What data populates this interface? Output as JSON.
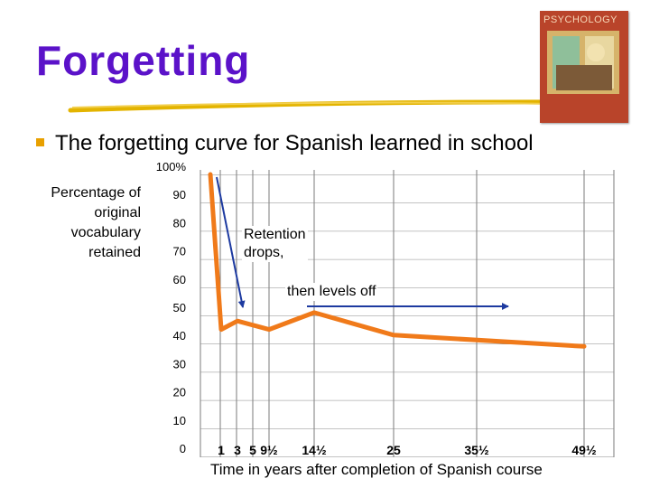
{
  "slide": {
    "title": "Forgetting",
    "bullet": "The forgetting curve for Spanish learned in school",
    "y_axis_label": [
      "Percentage of",
      "original",
      "vocabulary",
      "retained"
    ],
    "x_axis_label": "Time in years after completion of Spanish course",
    "annotation_1": [
      "Retention",
      "drops,"
    ],
    "annotation_2": "then levels off",
    "cover_title": "PSYCHOLOGY"
  },
  "colors": {
    "title": "#5b12c9",
    "bullet": "#e8a000",
    "curve": "#f07a1a",
    "arrow": "#1d3aa0"
  },
  "chart_data": {
    "type": "line",
    "title": "",
    "xlabel": "Time in years after completion of Spanish course",
    "ylabel": "Percentage of original vocabulary retained",
    "y_ticks": [
      {
        "label": "100%",
        "value": 100
      },
      {
        "label": "90",
        "value": 90
      },
      {
        "label": "80",
        "value": 80
      },
      {
        "label": "70",
        "value": 70
      },
      {
        "label": "60",
        "value": 60
      },
      {
        "label": "50",
        "value": 50
      },
      {
        "label": "40",
        "value": 40
      },
      {
        "label": "30",
        "value": 30
      },
      {
        "label": "20",
        "value": 20
      },
      {
        "label": "10",
        "value": 10
      },
      {
        "label": "0",
        "value": 0
      }
    ],
    "x_ticks": [
      {
        "label": "1",
        "value": 1
      },
      {
        "label": "3",
        "value": 3
      },
      {
        "label": "5",
        "value": 5
      },
      {
        "label": "9½",
        "value": 9.5
      },
      {
        "label": "14½",
        "value": 14.5
      },
      {
        "label": "25",
        "value": 25
      },
      {
        "label": "35½",
        "value": 35.5
      },
      {
        "label": "49½",
        "value": 49.5
      }
    ],
    "ylim": [
      0,
      100
    ],
    "grid": true,
    "series": [
      {
        "points": [
          {
            "x": 0,
            "y": 100
          },
          {
            "x": 1,
            "y": 45
          },
          {
            "x": 3,
            "y": 48
          },
          {
            "x": 9.5,
            "y": 45
          },
          {
            "x": 14.5,
            "y": 51
          },
          {
            "x": 25,
            "y": 43
          },
          {
            "x": 49.5,
            "y": 39
          }
        ]
      }
    ]
  }
}
